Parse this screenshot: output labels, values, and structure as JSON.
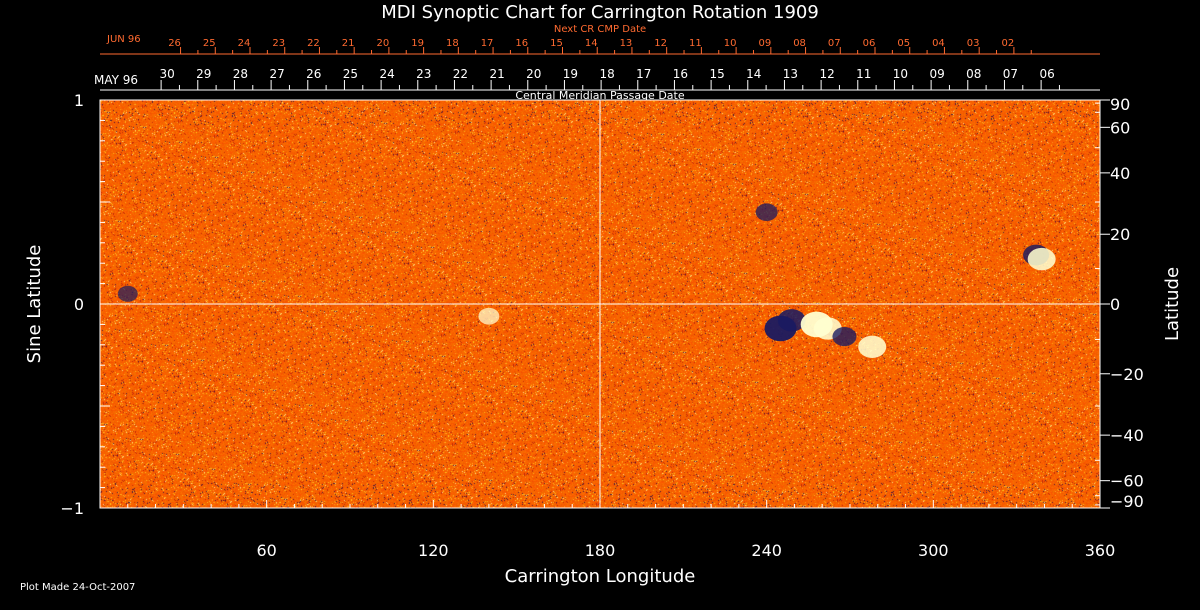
{
  "chart_data": {
    "type": "heatmap",
    "title": "MDI Synoptic Chart for Carrington Rotation 1909",
    "xlabel": "Carrington Longitude",
    "ylabel_left": "Sine Latitude",
    "ylabel_right": "Latitude",
    "xlim": [
      0,
      360
    ],
    "ylim": [
      -1,
      1
    ],
    "x_ticks": [
      60,
      120,
      180,
      240,
      300,
      360
    ],
    "y_ticks_left": [
      {
        "value": 1,
        "label": "1"
      },
      {
        "value": 0,
        "label": "0"
      },
      {
        "value": -1,
        "label": "−1"
      }
    ],
    "y_ticks_right": [
      {
        "deg": 90,
        "label": "90"
      },
      {
        "deg": 60,
        "label": "60"
      },
      {
        "deg": 40,
        "label": "40"
      },
      {
        "deg": 20,
        "label": "20"
      },
      {
        "deg": 0,
        "label": "0"
      },
      {
        "deg": -20,
        "label": "−20"
      },
      {
        "deg": -40,
        "label": "−40"
      },
      {
        "deg": -60,
        "label": "−60"
      },
      {
        "deg": -90,
        "label": "−90"
      }
    ],
    "grid": {
      "vertical_at": 180,
      "horizontal_at": 0
    },
    "colors": {
      "background": "#ff5a00",
      "positive_field": "#ffffd0",
      "negative_field": "#1a1a60",
      "grid": "#ffffff",
      "next_rotation_axis": "#ff6a30"
    },
    "cmp_axis": {
      "month_label": "MAY 96",
      "caption": "Central Meridian Passage Date",
      "days": [
        "30",
        "29",
        "28",
        "27",
        "26",
        "25",
        "24",
        "23",
        "22",
        "21",
        "20",
        "19",
        "18",
        "17",
        "16",
        "15",
        "14",
        "13",
        "12",
        "11",
        "10",
        "09",
        "08",
        "07",
        "06"
      ],
      "first_day_longitude": 22,
      "degrees_per_day": 13.2
    },
    "next_cr_axis": {
      "month_label": "JUN 96",
      "caption": "Next CR CMP Date",
      "days": [
        "26",
        "25",
        "24",
        "23",
        "22",
        "21",
        "20",
        "19",
        "18",
        "17",
        "16",
        "15",
        "14",
        "13",
        "12",
        "11",
        "10",
        "09",
        "08",
        "07",
        "06",
        "05",
        "04",
        "03",
        "02"
      ],
      "first_day_longitude": 29,
      "degrees_per_day": 12.5
    },
    "magnetic_regions": [
      {
        "polarity": "negative",
        "longitude": 245,
        "sine_latitude": -0.12,
        "strength": 1.0
      },
      {
        "polarity": "negative",
        "longitude": 249,
        "sine_latitude": -0.08,
        "strength": 0.8
      },
      {
        "polarity": "positive",
        "longitude": 258,
        "sine_latitude": -0.1,
        "strength": 1.0
      },
      {
        "polarity": "positive",
        "longitude": 262,
        "sine_latitude": -0.12,
        "strength": 0.8
      },
      {
        "polarity": "negative",
        "longitude": 268,
        "sine_latitude": -0.16,
        "strength": 0.6
      },
      {
        "polarity": "positive",
        "longitude": 278,
        "sine_latitude": -0.21,
        "strength": 0.8
      },
      {
        "polarity": "negative",
        "longitude": 337,
        "sine_latitude": 0.24,
        "strength": 0.7
      },
      {
        "polarity": "positive",
        "longitude": 339,
        "sine_latitude": 0.22,
        "strength": 0.8
      },
      {
        "polarity": "negative",
        "longitude": 240,
        "sine_latitude": 0.45,
        "strength": 0.5
      },
      {
        "polarity": "negative",
        "longitude": 10,
        "sine_latitude": 0.05,
        "strength": 0.4
      },
      {
        "polarity": "positive",
        "longitude": 140,
        "sine_latitude": -0.06,
        "strength": 0.45
      }
    ]
  },
  "footer": {
    "plot_made": "Plot Made 24-Oct-2007"
  }
}
